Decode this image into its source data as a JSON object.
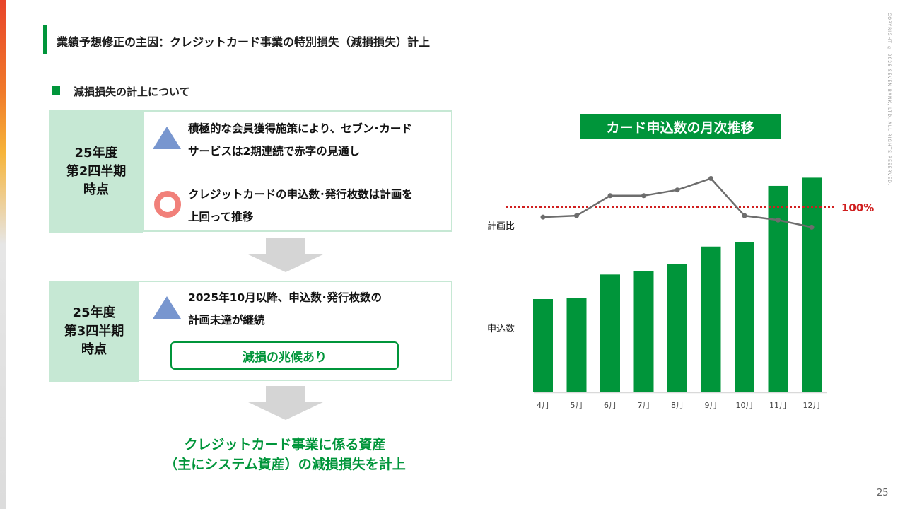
{
  "page": {
    "title": "業績予想修正の主因：クレジットカード事業の特別損失（減損損失）計上",
    "copyright": "COPYRIGHT © 2026 SEVEN BANK, LTD. ALL RIGHTS RESERVED.",
    "page_number": "25"
  },
  "section": {
    "label": "減損損失の計上について"
  },
  "colors": {
    "accent_green": "#00953a",
    "label_bg": "#c6e8d4",
    "triangle": "#7896cf",
    "circle": "#f1807a",
    "target_line": "#d01f1f"
  },
  "q2": {
    "label": "25年度\n第2四半期\n時点",
    "items": [
      {
        "icon": "triangle-icon",
        "text": "積極的な会員獲得施策により、セブン･カード\nサービスは2期連続で赤字の見通し"
      },
      {
        "icon": "circle-icon",
        "text": "クレジットカードの申込数･発行枚数は計画を\n上回って推移"
      }
    ]
  },
  "q3": {
    "label": "25年度\n第3四半期\n時点",
    "items": [
      {
        "icon": "triangle-icon",
        "text": "2025年10月以降、申込数･発行枚数の\n計画未達が継続"
      }
    ],
    "badge": "減損の兆候あり"
  },
  "conclusion": "クレジットカード事業に係る資産\n（主にシステム資産）の減損損失を計上",
  "chart_data": {
    "type": "bar",
    "title": "カード申込数の月次推移",
    "categories": [
      "4月",
      "5月",
      "6月",
      "7月",
      "8月",
      "9月",
      "10月",
      "11月",
      "12月"
    ],
    "series": [
      {
        "name": "申込数",
        "type": "bar",
        "values": [
          40,
          40.5,
          50.5,
          52,
          55,
          62.5,
          64.5,
          88.5,
          92
        ]
      },
      {
        "name": "計画比",
        "type": "line",
        "values": [
          96.5,
          97,
          104,
          104,
          106,
          110,
          97,
          95.5,
          93
        ]
      }
    ],
    "reference_line": {
      "label": "100%",
      "value": 100
    },
    "bar_axis_max": 100,
    "line_axis_range": [
      88,
      120
    ],
    "y_axis_shown": false,
    "grid": false
  }
}
